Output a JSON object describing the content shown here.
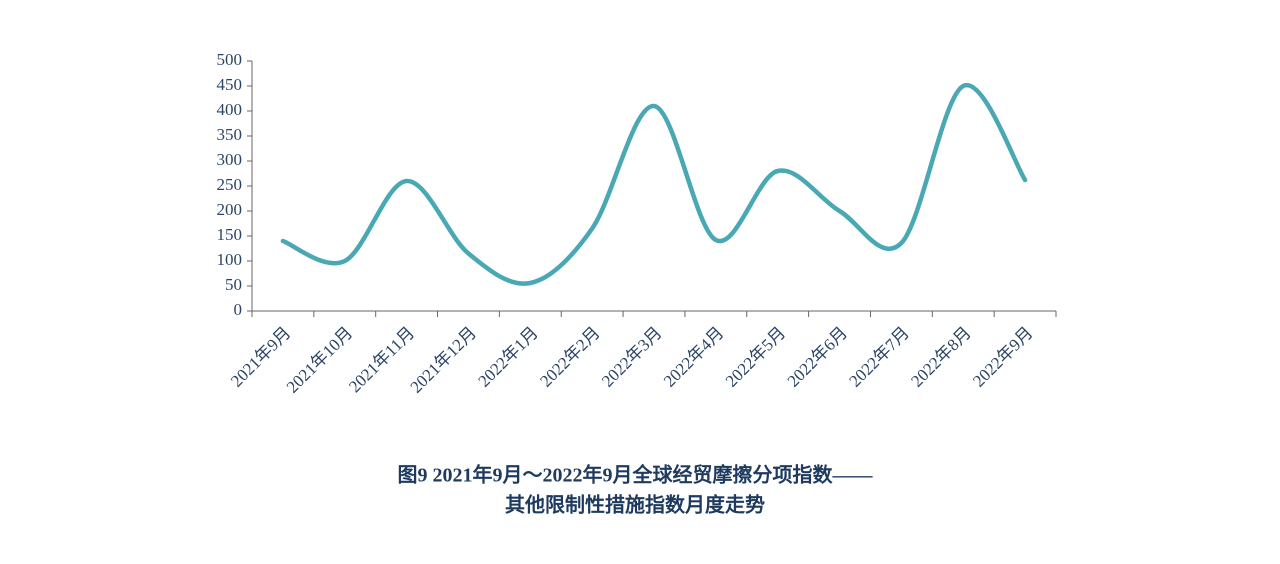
{
  "chart_data": {
    "type": "line",
    "title": [
      "图9  2021年9月～2022年9月全球经贸摩擦分项指数——",
      "其他限制性措施指数月度走势"
    ],
    "categories": [
      "2021年9月",
      "2021年10月",
      "2021年11月",
      "2021年12月",
      "2022年1月",
      "2022年2月",
      "2022年3月",
      "2022年4月",
      "2022年5月",
      "2022年6月",
      "2022年7月",
      "2022年8月",
      "2022年9月"
    ],
    "series": [
      {
        "color": "#4aa8b5",
        "values": [
          140,
          100,
          260,
          115,
          56,
          165,
          410,
          142,
          280,
          200,
          136,
          450,
          262
        ]
      }
    ],
    "ylim": [
      0,
      500
    ],
    "yticks": [
      0,
      50,
      100,
      150,
      200,
      250,
      300,
      350,
      400,
      450,
      500
    ]
  }
}
